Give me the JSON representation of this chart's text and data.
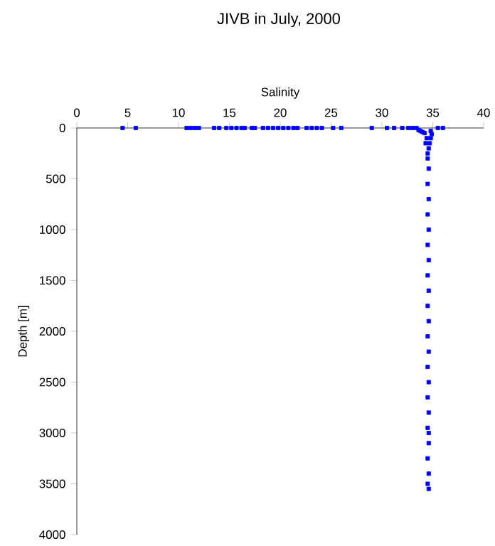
{
  "chart_data": {
    "type": "scatter",
    "title": "JIVB in July, 2000",
    "xlabel": "Salinity",
    "ylabel": "Depth [m]",
    "xlim": [
      0,
      40
    ],
    "xticks": [
      0,
      5,
      10,
      15,
      20,
      25,
      30,
      35,
      40
    ],
    "ylim": [
      4000,
      0
    ],
    "yticks": [
      0,
      500,
      1000,
      1500,
      2000,
      2500,
      3000,
      3500,
      4000
    ],
    "marker": "square",
    "series": [
      {
        "color": "#0000ff",
        "x": [
          4.5,
          5.8,
          10.8,
          11.2,
          11.6,
          12.0,
          13.5,
          14.0,
          14.7,
          15.2,
          15.7,
          16.2,
          16.5,
          17.2,
          17.5,
          18.3,
          18.8,
          19.3,
          19.8,
          20.3,
          20.8,
          21.3,
          21.7,
          22.6,
          23.1,
          23.6,
          24.1,
          25.2,
          26.0,
          29.0,
          30.5,
          31.2,
          32.0,
          32.6,
          33.0,
          33.4,
          35.5,
          36.0,
          33.6,
          33.8,
          34.0,
          34.2,
          34.8,
          34.9,
          34.8,
          34.7,
          34.6,
          34.4,
          34.3,
          34.5,
          34.6,
          34.5,
          34.6,
          34.5,
          34.6,
          34.5,
          34.6,
          34.5,
          34.6,
          34.5,
          34.6,
          34.5,
          34.6,
          34.5,
          34.6,
          34.5,
          34.6,
          34.5,
          34.6,
          34.5,
          34.6,
          34.5,
          34.6,
          34.5,
          34.6
        ],
        "values": [
          0,
          0,
          0,
          0,
          0,
          0,
          0,
          0,
          0,
          0,
          0,
          0,
          0,
          0,
          0,
          0,
          0,
          0,
          0,
          0,
          0,
          0,
          0,
          0,
          0,
          0,
          0,
          0,
          0,
          0,
          0,
          0,
          0,
          0,
          0,
          0,
          0,
          0,
          20,
          30,
          40,
          50,
          30,
          60,
          100,
          150,
          200,
          100,
          150,
          250,
          400,
          550,
          700,
          850,
          1000,
          1150,
          1300,
          1450,
          1600,
          1750,
          1900,
          2050,
          2200,
          2350,
          2500,
          2650,
          2800,
          2950,
          3100,
          3250,
          3400,
          3500,
          3550,
          300,
          3000
        ]
      }
    ]
  }
}
